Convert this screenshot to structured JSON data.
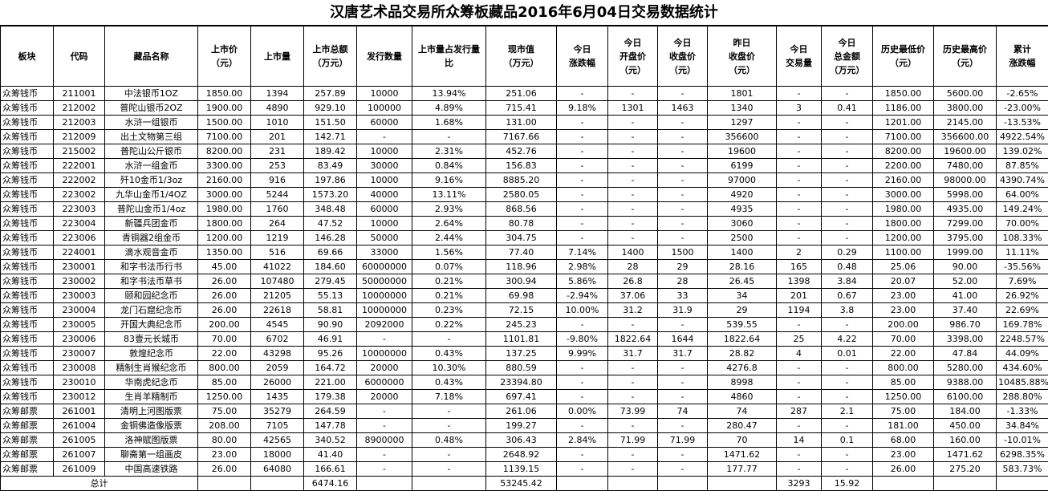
{
  "title": "汉唐艺术品交易所众筹板藏品2016年6月04日交易数据统计",
  "headers": [
    "板块",
    "代码",
    "藏品名称",
    "上市价\n（元）",
    "上市量",
    "上市总额\n（万元）",
    "发行数量",
    "上市量占发行量\n比",
    "现市值\n（万元）",
    "今日\n涨跌幅",
    "今日\n开盘价\n（元）",
    "今日\n收盘价\n（元）",
    "昨日\n收盘价\n（元）",
    "今日\n交易量",
    "今日\n总金额\n（万元）",
    "历史最低价\n（元）",
    "历史最高价\n（元）",
    "累计\n涨跌幅"
  ],
  "rows": [
    [
      "众筹钱币",
      "211001",
      "中法银币1OZ",
      "1850.00",
      "1394",
      "257.89",
      "10000",
      "13.94%",
      "251.06",
      "-",
      "-",
      "-",
      "1801",
      "-",
      "-",
      "1850.00",
      "5600.00",
      "-2.65%"
    ],
    [
      "众筹钱币",
      "212002",
      "普陀山银币2OZ",
      "1900.00",
      "4890",
      "929.10",
      "100000",
      "4.89%",
      "715.41",
      "9.18%",
      "1301",
      "1463",
      "1340",
      "3",
      "0.41",
      "1186.00",
      "3800.00",
      "-23.00%"
    ],
    [
      "众筹钱币",
      "212003",
      "水浒一组银币",
      "1500.00",
      "1010",
      "151.50",
      "60000",
      "1.68%",
      "131.00",
      "-",
      "-",
      "-",
      "1297",
      "-",
      "-",
      "1201.00",
      "2145.00",
      "-13.53%"
    ],
    [
      "众筹钱币",
      "212009",
      "出土文物第三组",
      "7100.00",
      "201",
      "142.71",
      "-",
      "-",
      "7167.66",
      "-",
      "-",
      "-",
      "356600",
      "-",
      "-",
      "7100.00",
      "356600.00",
      "4922.54%"
    ],
    [
      "众筹钱币",
      "215002",
      "普陀山公斤银币",
      "8200.00",
      "231",
      "189.42",
      "10000",
      "2.31%",
      "452.76",
      "-",
      "-",
      "-",
      "19600",
      "-",
      "-",
      "8200.00",
      "19600.00",
      "139.02%"
    ],
    [
      "众筹钱币",
      "222001",
      "水浒一组金币",
      "3300.00",
      "253",
      "83.49",
      "30000",
      "0.84%",
      "156.83",
      "-",
      "-",
      "-",
      "6199",
      "-",
      "-",
      "2200.00",
      "7480.00",
      "87.85%"
    ],
    [
      "众筹钱币",
      "222002",
      "歼10金币1/3oz",
      "2160.00",
      "916",
      "197.86",
      "10000",
      "9.16%",
      "8885.20",
      "-",
      "-",
      "-",
      "97000",
      "-",
      "-",
      "2160.00",
      "98000.00",
      "4390.74%"
    ],
    [
      "众筹钱币",
      "223002",
      "九华山金币1/4OZ",
      "3000.00",
      "5244",
      "1573.20",
      "40000",
      "13.11%",
      "2580.05",
      "-",
      "-",
      "-",
      "4920",
      "-",
      "-",
      "3000.00",
      "5998.00",
      "64.00%"
    ],
    [
      "众筹钱币",
      "223003",
      "普陀山金币1/4oz",
      "1980.00",
      "1760",
      "348.48",
      "60000",
      "2.93%",
      "868.56",
      "-",
      "-",
      "-",
      "4935",
      "-",
      "-",
      "1980.00",
      "4935.00",
      "149.24%"
    ],
    [
      "众筹钱币",
      "223004",
      "新疆兵团金币",
      "1800.00",
      "264",
      "47.52",
      "10000",
      "2.64%",
      "80.78",
      "-",
      "-",
      "-",
      "3060",
      "-",
      "-",
      "1800.00",
      "7299.00",
      "70.00%"
    ],
    [
      "众筹钱币",
      "223006",
      "青铜器2组金币",
      "1200.00",
      "1219",
      "146.28",
      "50000",
      "2.44%",
      "304.75",
      "-",
      "-",
      "-",
      "2500",
      "-",
      "-",
      "1200.00",
      "3795.00",
      "108.33%"
    ],
    [
      "众筹钱币",
      "224001",
      "滴水观音金币",
      "1350.00",
      "516",
      "69.66",
      "33000",
      "1.56%",
      "77.40",
      "7.14%",
      "1400",
      "1500",
      "1400",
      "2",
      "0.29",
      "1100.00",
      "1999.00",
      "11.11%"
    ],
    [
      "众筹钱币",
      "230001",
      "和字书法币行书",
      "45.00",
      "41022",
      "184.60",
      "60000000",
      "0.07%",
      "118.96",
      "2.98%",
      "28",
      "29",
      "28.16",
      "165",
      "0.48",
      "25.06",
      "90.00",
      "-35.56%"
    ],
    [
      "众筹钱币",
      "230002",
      "和字书法币草书",
      "26.00",
      "107480",
      "279.45",
      "50000000",
      "0.21%",
      "300.94",
      "5.86%",
      "26.8",
      "28",
      "26.45",
      "1398",
      "3.84",
      "20.07",
      "52.00",
      "7.69%"
    ],
    [
      "众筹钱币",
      "230003",
      "颐和园纪念币",
      "26.00",
      "21205",
      "55.13",
      "10000000",
      "0.21%",
      "69.98",
      "-2.94%",
      "37.06",
      "33",
      "34",
      "201",
      "0.67",
      "23.00",
      "41.00",
      "26.92%"
    ],
    [
      "众筹钱币",
      "230004",
      "龙门石窟纪念币",
      "26.00",
      "22618",
      "58.81",
      "10000000",
      "0.23%",
      "72.15",
      "10.00%",
      "31.2",
      "31.9",
      "29",
      "1194",
      "3.8",
      "23.00",
      "37.40",
      "22.69%"
    ],
    [
      "众筹钱币",
      "230005",
      "开国大典纪念币",
      "200.00",
      "4545",
      "90.90",
      "2092000",
      "0.22%",
      "245.23",
      "-",
      "-",
      "-",
      "539.55",
      "-",
      "-",
      "200.00",
      "986.70",
      "169.78%"
    ],
    [
      "众筹钱币",
      "230006",
      "83壹元长城币",
      "70.00",
      "6702",
      "46.91",
      "-",
      "-",
      "1101.81",
      "-9.80%",
      "1822.64",
      "1644",
      "1822.64",
      "25",
      "4.22",
      "70.00",
      "3398.00",
      "2248.57%"
    ],
    [
      "众筹钱币",
      "230007",
      "敦煌纪念币",
      "22.00",
      "43298",
      "95.26",
      "10000000",
      "0.43%",
      "137.25",
      "9.99%",
      "31.7",
      "31.7",
      "28.82",
      "4",
      "0.01",
      "22.00",
      "47.84",
      "44.09%"
    ],
    [
      "众筹钱币",
      "230008",
      "精制生肖猴纪念币",
      "800.00",
      "2059",
      "164.72",
      "20000",
      "10.30%",
      "880.59",
      "-",
      "-",
      "-",
      "4276.8",
      "-",
      "-",
      "800.00",
      "5280.00",
      "434.60%"
    ],
    [
      "众筹钱币",
      "230010",
      "华南虎纪念币",
      "85.00",
      "26000",
      "221.00",
      "6000000",
      "0.43%",
      "23394.80",
      "-",
      "-",
      "-",
      "8998",
      "-",
      "-",
      "85.00",
      "9388.00",
      "10485.88%"
    ],
    [
      "众筹钱币",
      "230012",
      "生肖羊精制币",
      "1250.00",
      "1435",
      "179.38",
      "20000",
      "7.18%",
      "697.41",
      "-",
      "-",
      "-",
      "4860",
      "-",
      "-",
      "1250.00",
      "6100.00",
      "288.80%"
    ],
    [
      "众筹邮票",
      "261001",
      "清明上河图版票",
      "75.00",
      "35279",
      "264.59",
      "-",
      "-",
      "261.06",
      "0.00%",
      "73.99",
      "74",
      "74",
      "287",
      "2.1",
      "75.00",
      "184.00",
      "-1.33%"
    ],
    [
      "众筹邮票",
      "261004",
      "金铜佛造像版票",
      "208.00",
      "7105",
      "147.78",
      "-",
      "-",
      "199.27",
      "-",
      "-",
      "-",
      "280.47",
      "-",
      "-",
      "181.00",
      "450.00",
      "34.84%"
    ],
    [
      "众筹邮票",
      "261005",
      "洛神赋图版票",
      "80.00",
      "42565",
      "340.52",
      "8900000",
      "0.48%",
      "306.43",
      "2.84%",
      "71.99",
      "71.99",
      "70",
      "14",
      "0.1",
      "68.00",
      "160.00",
      "-10.01%"
    ],
    [
      "众筹邮票",
      "261007",
      "聊斋第一组画皮",
      "23.00",
      "18000",
      "41.40",
      "-",
      "-",
      "2648.92",
      "-",
      "-",
      "-",
      "1471.62",
      "-",
      "-",
      "23.00",
      "1471.62",
      "6298.35%"
    ],
    [
      "众筹邮票",
      "261009",
      "中国高速铁路",
      "26.00",
      "64080",
      "166.61",
      "-",
      "-",
      "1139.15",
      "-",
      "-",
      "-",
      "177.77",
      "-",
      "-",
      "26.00",
      "275.20",
      "583.73%"
    ]
  ],
  "total": {
    "label": "总计",
    "listing_total": "6474.16",
    "market_value": "53245.42",
    "volume": "3293",
    "amount": "15.92"
  }
}
